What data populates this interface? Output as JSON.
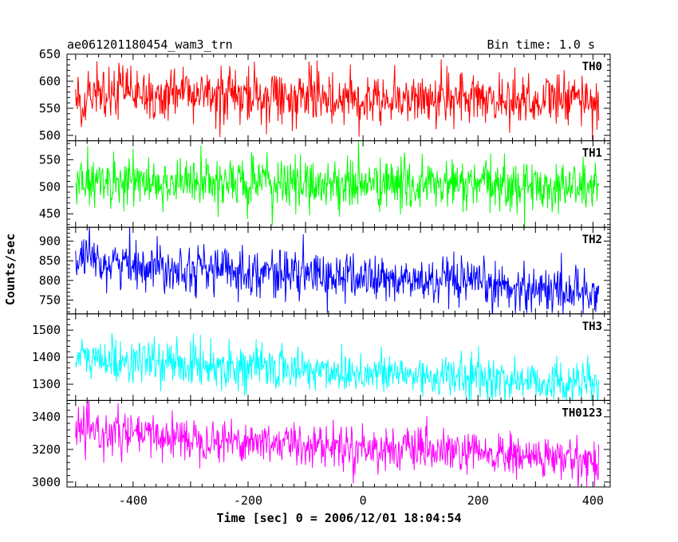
{
  "chart_data": {
    "type": "line",
    "title_left": "ae061201180454_wam3_trn",
    "title_right": "Bin time: 1.0 s",
    "xlabel": "Time [sec] 0 = 2006/12/01 18:04:54",
    "ylabel": "Counts/sec",
    "xlim": [
      -515,
      430
    ],
    "xticks": [
      -400,
      -200,
      0,
      200,
      400
    ],
    "x_start": -500,
    "x_end": 410,
    "x_step": 1,
    "panels": [
      {
        "name": "TH0",
        "color": "#ff0000",
        "ylim": [
          490,
          650
        ],
        "yticks": [
          500,
          550,
          600,
          650
        ],
        "mean_start": 575,
        "mean_end": 565,
        "noise": 25
      },
      {
        "name": "TH1",
        "color": "#00ff00",
        "ylim": [
          425,
          585
        ],
        "yticks": [
          450,
          500,
          550
        ],
        "mean_start": 510,
        "mean_end": 500,
        "noise": 24
      },
      {
        "name": "TH2",
        "color": "#0000ff",
        "ylim": [
          715,
          935
        ],
        "yticks": [
          750,
          800,
          850,
          900
        ],
        "mean_start": 850,
        "mean_end": 770,
        "noise": 30
      },
      {
        "name": "TH3",
        "color": "#00ffff",
        "ylim": [
          1240,
          1560
        ],
        "yticks": [
          1300,
          1400,
          1500
        ],
        "mean_start": 1395,
        "mean_end": 1300,
        "noise": 40
      },
      {
        "name": "TH0123",
        "color": "#ff00ff",
        "ylim": [
          2970,
          3500
        ],
        "yticks": [
          3000,
          3200,
          3400
        ],
        "mean_start": 3310,
        "mean_end": 3130,
        "noise": 65
      }
    ]
  }
}
